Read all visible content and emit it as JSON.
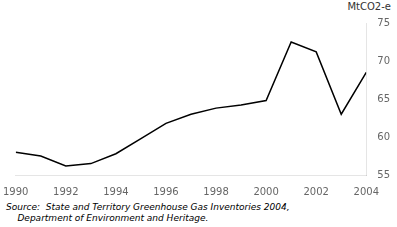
{
  "chart_data": {
    "type": "line",
    "y_label": "MtCO2-e",
    "annotations": [
      "Source:  State and Territory Greenhouse Gas Inventories 2004,",
      "    Department of Environment and Heritage."
    ],
    "x": [
      1990,
      1991,
      1992,
      1993,
      1994,
      1995,
      1996,
      1997,
      1998,
      1999,
      2000,
      2001,
      2002,
      2003,
      2004
    ],
    "values": [
      58.0,
      57.5,
      56.2,
      56.5,
      57.8,
      59.8,
      61.8,
      63.0,
      63.8,
      64.2,
      64.8,
      72.5,
      71.2,
      63.0,
      68.5
    ],
    "color": "#000000",
    "xlim": [
      1990,
      2004
    ],
    "xticks": [
      1990,
      1992,
      1994,
      1996,
      1998,
      2000,
      2002,
      2004
    ],
    "ylim": [
      55,
      75
    ],
    "yticks": [
      55,
      60,
      65,
      70,
      75
    ],
    "grid": false
  }
}
